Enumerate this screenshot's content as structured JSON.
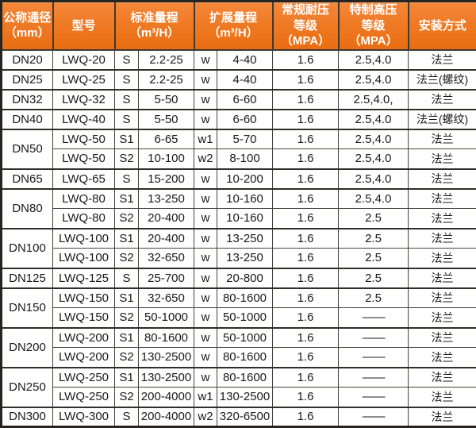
{
  "colors": {
    "header_bg": "#ef7a24",
    "header_bg_light": "#f5873a",
    "header_bg_dark": "#e96d11",
    "header_text": "#ffffff",
    "grid_line": "#45413a",
    "outer_border": "#272420",
    "row_bg": "#ffffff",
    "cell_text": "#191919"
  },
  "table": {
    "headers": [
      {
        "line1": "公称通径",
        "line2": "（mm）"
      },
      {
        "line1": "型号",
        "line2": ""
      },
      {
        "line1": "标准量程",
        "line2": "（m³/H）"
      },
      {
        "line1": "扩展量程",
        "line2": "（m³/H）"
      },
      {
        "line1": "常规耐压",
        "line2": "等级（MPA）"
      },
      {
        "line1": "特制高压",
        "line2": "等级（MPA）"
      },
      {
        "line1": "安装方式",
        "line2": ""
      }
    ],
    "groups": [
      {
        "diameter": "DN20",
        "rows": [
          [
            "LWQ-20",
            "S",
            "2.2-25",
            "w",
            "4-40",
            "1.6",
            "2.5,4.0",
            "法兰"
          ]
        ]
      },
      {
        "diameter": "DN25",
        "rows": [
          [
            "LWQ-25",
            "S",
            "2.2-25",
            "w",
            "4-40",
            "1.6",
            "2.5,4.0",
            "法兰(螺纹)"
          ]
        ]
      },
      {
        "diameter": "DN32",
        "rows": [
          [
            "LWQ-32",
            "S",
            "5-50",
            "w",
            "6-60",
            "1.6",
            "2.5,4.0,",
            "法兰"
          ]
        ]
      },
      {
        "diameter": "DN40",
        "rows": [
          [
            "LWQ-40",
            "S",
            "5-50",
            "w",
            "6-60",
            "1.6",
            "2.5,4.0",
            "法兰(螺纹)"
          ]
        ]
      },
      {
        "diameter": "DN50",
        "rows": [
          [
            "LWQ-50",
            "S1",
            "6-65",
            "w1",
            "5-70",
            "1.6",
            "2.5,4.0",
            "法兰"
          ],
          [
            "LWQ-50",
            "S2",
            "10-100",
            "w2",
            "8-100",
            "1.6",
            "2.5,4.0",
            "法兰"
          ]
        ]
      },
      {
        "diameter": "DN65",
        "rows": [
          [
            "LWQ-65",
            "S",
            "15-200",
            "w",
            "10-200",
            "1.6",
            "2.5,4.0",
            "法兰"
          ]
        ]
      },
      {
        "diameter": "DN80",
        "rows": [
          [
            "LWQ-80",
            "S1",
            "13-250",
            "w",
            "10-160",
            "1.6",
            "2.5,4.0",
            "法兰"
          ],
          [
            "LWQ-80",
            "S2",
            "20-400",
            "w",
            "10-160",
            "1.6",
            "2.5",
            "法兰"
          ]
        ]
      },
      {
        "diameter": "DN100",
        "rows": [
          [
            "LWQ-100",
            "S1",
            "20-400",
            "w",
            "13-250",
            "1.6",
            "2.5",
            "法兰"
          ],
          [
            "LWQ-100",
            "S2",
            "32-650",
            "w",
            "13-250",
            "1.6",
            "2.5",
            "法兰"
          ]
        ]
      },
      {
        "diameter": "DN125",
        "rows": [
          [
            "LWQ-125",
            "S",
            "25-700",
            "w",
            "20-800",
            "1.6",
            "2.5",
            "法兰"
          ]
        ]
      },
      {
        "diameter": "DN150",
        "rows": [
          [
            "LWQ-150",
            "S1",
            "32-650",
            "w",
            "80-1600",
            "1.6",
            "2.5",
            "法兰"
          ],
          [
            "LWQ-150",
            "S2",
            "50-1000",
            "w",
            "50-1000",
            "1.6",
            "——",
            "法兰"
          ]
        ]
      },
      {
        "diameter": "DN200",
        "rows": [
          [
            "LWQ-200",
            "S1",
            "80-1600",
            "w",
            "50-1000",
            "1.6",
            "——",
            "法兰"
          ],
          [
            "LWQ-200",
            "S2",
            "130-2500",
            "w",
            "80-1600",
            "1.6",
            "——",
            "法兰"
          ]
        ]
      },
      {
        "diameter": "DN250",
        "rows": [
          [
            "LWQ-250",
            "S1",
            "130-2500",
            "w",
            "80-1600",
            "1.6",
            "——",
            "法兰"
          ],
          [
            "LWQ-250",
            "S2",
            "200-4000",
            "w1",
            "130-2500",
            "1.6",
            "——",
            "法兰"
          ]
        ]
      },
      {
        "diameter": "DN300",
        "rows": [
          [
            "LWQ-300",
            "S",
            "200-4000",
            "w2",
            "320-6500",
            "1.6",
            "——",
            "法兰"
          ]
        ]
      }
    ]
  },
  "chart_data": {
    "type": "table",
    "title": "",
    "columns": [
      "公称通径（mm）",
      "型号",
      "标准量程代号",
      "标准量程（m³/H）",
      "扩展量程代号",
      "扩展量程（m³/H）",
      "常规耐压等级（MPA）",
      "特制高压等级（MPA）",
      "安装方式"
    ],
    "rows": [
      [
        "DN20",
        "LWQ-20",
        "S",
        "2.2-25",
        "w",
        "4-40",
        "1.6",
        "2.5,4.0",
        "法兰"
      ],
      [
        "DN25",
        "LWQ-25",
        "S",
        "2.2-25",
        "w",
        "4-40",
        "1.6",
        "2.5,4.0",
        "法兰(螺纹)"
      ],
      [
        "DN32",
        "LWQ-32",
        "S",
        "5-50",
        "w",
        "6-60",
        "1.6",
        "2.5,4.0,",
        "法兰"
      ],
      [
        "DN40",
        "LWQ-40",
        "S",
        "5-50",
        "w",
        "6-60",
        "1.6",
        "2.5,4.0",
        "法兰(螺纹)"
      ],
      [
        "DN50",
        "LWQ-50",
        "S1",
        "6-65",
        "w1",
        "5-70",
        "1.6",
        "2.5,4.0",
        "法兰"
      ],
      [
        "DN50",
        "LWQ-50",
        "S2",
        "10-100",
        "w2",
        "8-100",
        "1.6",
        "2.5,4.0",
        "法兰"
      ],
      [
        "DN65",
        "LWQ-65",
        "S",
        "15-200",
        "w",
        "10-200",
        "1.6",
        "2.5,4.0",
        "法兰"
      ],
      [
        "DN80",
        "LWQ-80",
        "S1",
        "13-250",
        "w",
        "10-160",
        "1.6",
        "2.5,4.0",
        "法兰"
      ],
      [
        "DN80",
        "LWQ-80",
        "S2",
        "20-400",
        "w",
        "10-160",
        "1.6",
        "2.5",
        "法兰"
      ],
      [
        "DN100",
        "LWQ-100",
        "S1",
        "20-400",
        "w",
        "13-250",
        "1.6",
        "2.5",
        "法兰"
      ],
      [
        "DN100",
        "LWQ-100",
        "S2",
        "32-650",
        "w",
        "13-250",
        "1.6",
        "2.5",
        "法兰"
      ],
      [
        "DN125",
        "LWQ-125",
        "S",
        "25-700",
        "w",
        "20-800",
        "1.6",
        "2.5",
        "法兰"
      ],
      [
        "DN150",
        "LWQ-150",
        "S1",
        "32-650",
        "w",
        "80-1600",
        "1.6",
        "2.5",
        "法兰"
      ],
      [
        "DN150",
        "LWQ-150",
        "S2",
        "50-1000",
        "w",
        "50-1000",
        "1.6",
        "——",
        "法兰"
      ],
      [
        "DN200",
        "LWQ-200",
        "S1",
        "80-1600",
        "w",
        "50-1000",
        "1.6",
        "——",
        "法兰"
      ],
      [
        "DN200",
        "LWQ-200",
        "S2",
        "130-2500",
        "w",
        "80-1600",
        "1.6",
        "——",
        "法兰"
      ],
      [
        "DN250",
        "LWQ-250",
        "S1",
        "130-2500",
        "w",
        "80-1600",
        "1.6",
        "——",
        "法兰"
      ],
      [
        "DN250",
        "LWQ-250",
        "S2",
        "200-4000",
        "w1",
        "130-2500",
        "1.6",
        "——",
        "法兰"
      ],
      [
        "DN300",
        "LWQ-300",
        "S",
        "200-4000",
        "w2",
        "320-6500",
        "1.6",
        "——",
        "法兰"
      ]
    ],
    "layout": {
      "header_fill": "#ef7a24",
      "header_text_color": "#ffffff",
      "grid": true,
      "merged_first_column_groups": [
        "DN50",
        "DN80",
        "DN100",
        "DN150",
        "DN200",
        "DN250"
      ]
    }
  }
}
